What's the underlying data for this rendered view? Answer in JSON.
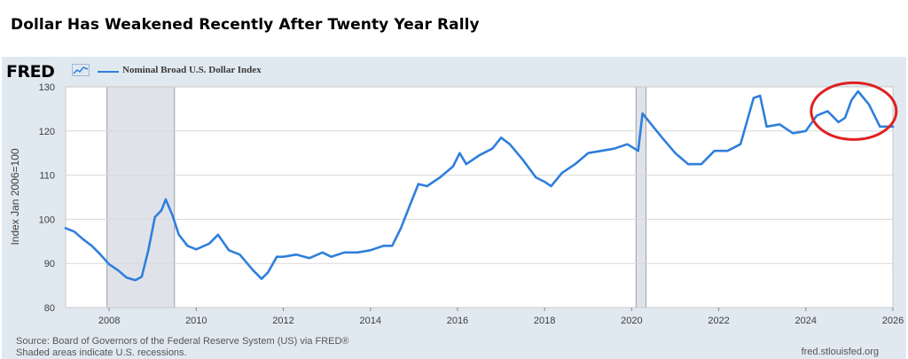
{
  "headline": "Dollar Has Weakened Recently After Twenty Year Rally",
  "fred_logo": "FRED",
  "legend": {
    "label": "Nominal Broad U.S. Dollar Index"
  },
  "footer": {
    "source": "Source: Board of Governors of the Federal Reserve System (US) via FRED®",
    "note": "Shaded areas indicate U.S. recessions.",
    "url": "fred.stlouisfed.org"
  },
  "colors": {
    "series": "#2f7fdc",
    "recession": "#dfe3e9",
    "panel": "#e1e9f0",
    "annotation": "#e02020"
  },
  "chart_data": {
    "type": "line",
    "title": "Nominal Broad U.S. Dollar Index",
    "xlabel": "",
    "ylabel": "Index Jan 2006=100",
    "xlim": [
      2007.0,
      2026.0
    ],
    "ylim": [
      80,
      130
    ],
    "yticks": [
      80,
      90,
      100,
      110,
      120,
      130
    ],
    "xticks": [
      2008,
      2010,
      2012,
      2014,
      2016,
      2018,
      2020,
      2022,
      2024,
      2026
    ],
    "recessions": [
      [
        2007.95,
        2009.5
      ],
      [
        2020.1,
        2020.33
      ]
    ],
    "annotation": {
      "type": "circle",
      "center": [
        2025.1,
        124.5
      ],
      "note": "recent weakening highlighted"
    },
    "series": [
      {
        "name": "Nominal Broad U.S. Dollar Index",
        "x": [
          2007.0,
          2007.2,
          2007.4,
          2007.6,
          2007.8,
          2008.0,
          2008.2,
          2008.4,
          2008.6,
          2008.75,
          2008.9,
          2009.05,
          2009.2,
          2009.3,
          2009.45,
          2009.6,
          2009.8,
          2010.0,
          2010.3,
          2010.5,
          2010.75,
          2011.0,
          2011.3,
          2011.5,
          2011.65,
          2011.85,
          2012.0,
          2012.3,
          2012.6,
          2012.9,
          2013.1,
          2013.4,
          2013.7,
          2014.0,
          2014.3,
          2014.5,
          2014.7,
          2014.9,
          2015.1,
          2015.3,
          2015.6,
          2015.9,
          2016.05,
          2016.2,
          2016.5,
          2016.8,
          2017.0,
          2017.2,
          2017.5,
          2017.8,
          2018.0,
          2018.15,
          2018.4,
          2018.7,
          2019.0,
          2019.3,
          2019.6,
          2019.9,
          2020.15,
          2020.25,
          2020.45,
          2020.7,
          2021.0,
          2021.3,
          2021.6,
          2021.9,
          2022.2,
          2022.5,
          2022.8,
          2022.95,
          2023.1,
          2023.4,
          2023.7,
          2024.0,
          2024.25,
          2024.5,
          2024.75,
          2024.9,
          2025.05,
          2025.2,
          2025.45,
          2025.7,
          2025.9,
          2026.0
        ],
        "values": [
          98.0,
          97.2,
          95.5,
          94.0,
          92.0,
          89.8,
          88.5,
          86.8,
          86.2,
          87.0,
          93.0,
          100.5,
          102.0,
          104.5,
          101.0,
          96.5,
          94.0,
          93.2,
          94.5,
          96.5,
          93.0,
          92.0,
          88.5,
          86.5,
          88.0,
          91.5,
          91.5,
          92.0,
          91.2,
          92.5,
          91.5,
          92.5,
          92.5,
          93.0,
          94.0,
          94.0,
          98.0,
          103.0,
          108.0,
          107.5,
          109.5,
          112.0,
          115.0,
          112.5,
          114.5,
          116.0,
          118.5,
          117.0,
          113.5,
          109.5,
          108.5,
          107.5,
          110.5,
          112.5,
          115.0,
          115.5,
          116.0,
          117.0,
          115.5,
          124.0,
          121.5,
          118.5,
          115.0,
          112.5,
          112.5,
          115.5,
          115.5,
          117.0,
          127.5,
          128.0,
          121.0,
          121.5,
          119.5,
          120.0,
          123.5,
          124.5,
          122.0,
          123.0,
          127.0,
          129.0,
          126.0,
          121.0,
          121.0,
          121.0
        ]
      }
    ]
  }
}
